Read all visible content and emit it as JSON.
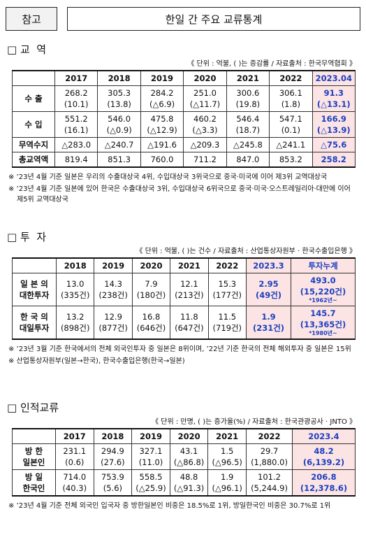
{
  "header": {
    "tag": "참고",
    "title": "한일 간 주요 교류통계"
  },
  "sections": [
    {
      "heading": "□ 교  역",
      "source": "《 단위 : 억불, ( )는 증감률 / 자료출처 : 한국무역협회 》",
      "table": {
        "header": [
          "2017",
          "2018",
          "2019",
          "2020",
          "2021",
          "2022",
          "2023.04"
        ],
        "rows": [
          {
            "label": [
              "수  출"
            ],
            "cells": [
              [
                "268.2",
                "(10.1)"
              ],
              [
                "305.3",
                "(13.8)"
              ],
              [
                "284.2",
                "(△6.9)"
              ],
              [
                "251.0",
                "(△11.7)"
              ],
              [
                "300.6",
                "(19.8)"
              ],
              [
                "306.1",
                "(1.8)"
              ],
              [
                "91.3",
                "(△13.1)"
              ]
            ]
          },
          {
            "label": [
              "수  입"
            ],
            "cells": [
              [
                "551.2",
                "(16.1)"
              ],
              [
                "546.0",
                "(△0.9)"
              ],
              [
                "475.8",
                "(△12.9)"
              ],
              [
                "460.2",
                "(△3.3)"
              ],
              [
                "546.4",
                "(18.7)"
              ],
              [
                "547.1",
                "(0.1)"
              ],
              [
                "166.9",
                "(△13.9)"
              ]
            ]
          },
          {
            "label": [
              "무역수지"
            ],
            "cells": [
              [
                "△283.0"
              ],
              [
                "△240.7"
              ],
              [
                "△191.6"
              ],
              [
                "△209.3"
              ],
              [
                "△245.8"
              ],
              [
                "△241.1"
              ],
              [
                "△75.6"
              ]
            ]
          },
          {
            "label": [
              "총교역액"
            ],
            "cells": [
              [
                "819.4"
              ],
              [
                "851.3"
              ],
              [
                "760.0"
              ],
              [
                "711.2"
              ],
              [
                "847.0"
              ],
              [
                "853.2"
              ],
              [
                "258.2"
              ]
            ]
          }
        ]
      },
      "notes": [
        "※ ’23년 4월 기준 일본은 우리의 수출대상국 4위, 수입대상국 3위국으로 중국·미국에 이어 제3위 교역대상국",
        "※ ’23년 4월 기준 일본에 있어 한국은 수출대상국 3위, 수입대상국 6위국으로 중국·미국·오스트레일리아·대만에 이어 제5위 교역대상국"
      ]
    },
    {
      "heading": "□ 투  자",
      "source": "《 단위 : 억불, ( )는 건수 / 자료출처 : 산업통상자원부 · 한국수출입은행 》",
      "table": {
        "header": [
          "2018",
          "2019",
          "2020",
          "2021",
          "2022",
          "2023.3",
          "투자누계"
        ],
        "rows": [
          {
            "label": [
              "일 본 의",
              "대한투자"
            ],
            "cells": [
              [
                "13.0",
                "(335건)"
              ],
              [
                "14.3",
                "(238건)"
              ],
              [
                "7.9",
                "(180건)"
              ],
              [
                "12.1",
                "(213건)"
              ],
              [
                "15.3",
                "(177건)"
              ],
              [
                "2.95",
                "(49건)"
              ],
              [
                "493.0",
                "(15,220건)",
                "*1962년~"
              ]
            ]
          },
          {
            "label": [
              "한 국 의",
              "대일투자"
            ],
            "cells": [
              [
                "13.2",
                "(898건)"
              ],
              [
                "12.9",
                "(877건)"
              ],
              [
                "16.8",
                "(646건)"
              ],
              [
                "11.8",
                "(647건)"
              ],
              [
                "11.5",
                "(719건)"
              ],
              [
                "1.9",
                "(231건)"
              ],
              [
                "145.7",
                "(13,365건)",
                "*1980년~"
              ]
            ]
          }
        ]
      },
      "notes": [
        "※ ’23년 3월 기준 한국에서의 전체 외국인투자 중 일본은 8위이며, ’22년 기준 한국의 전체 해외투자 중 일본은 15위",
        "※ 산업통상자원부(일본→한국), 한국수출입은행(한국→일본)"
      ]
    },
    {
      "heading": "□ 인적교류",
      "source": "《 단위 : 만명, ( )는 증가율(%) / 자료출처 : 한국관광공사 · JNTO 》",
      "table": {
        "header": [
          "2017",
          "2018",
          "2019",
          "2020",
          "2021",
          "2022",
          "2023.4"
        ],
        "rows": [
          {
            "label": [
              "방  한",
              "일본인"
            ],
            "cells": [
              [
                "231.1",
                "(0.6)"
              ],
              [
                "294.9",
                "(27.6)"
              ],
              [
                "327.1",
                "(11.0)"
              ],
              [
                "43.1",
                "(△86.8)"
              ],
              [
                "1.5",
                "(△96.5)"
              ],
              [
                "29.7",
                "(1,880.0)"
              ],
              [
                "48.2",
                "(6,139.2)"
              ]
            ]
          },
          {
            "label": [
              "방  일",
              "한국인"
            ],
            "cells": [
              [
                "714.0",
                "(40.3)"
              ],
              [
                "753.9",
                "(5.6)"
              ],
              [
                "558.5",
                "(△25.9)"
              ],
              [
                "48.8",
                "(△91.3)"
              ],
              [
                "1.9",
                "(△96.1)"
              ],
              [
                "101.2",
                "(5,244.9)"
              ],
              [
                "206.8",
                "(12,378.6)"
              ]
            ]
          }
        ]
      },
      "notes": [
        "※ ’23년 4월 기준 전체 외국인 입국자 중 방한일본인 비중은 18.5%로 1위, 방일한국인 비중은 30.7%로 1위"
      ]
    }
  ]
}
